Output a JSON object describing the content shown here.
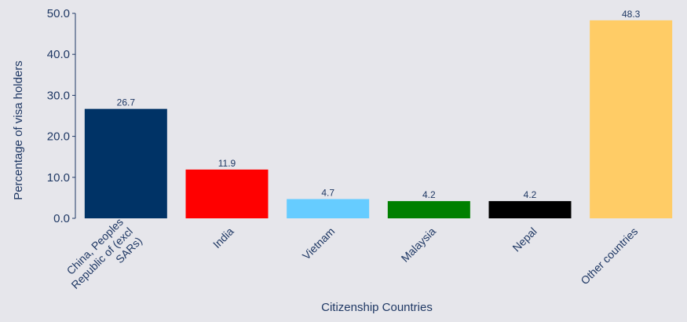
{
  "chart_data": {
    "type": "bar",
    "xlabel": "Citizenship Countries",
    "ylabel": "Percentage of visa holders",
    "ylim": [
      0,
      50
    ],
    "yticks": [
      "0.0",
      "10.0",
      "20.0",
      "30.0",
      "40.0",
      "50.0"
    ],
    "categories": [
      [
        "China, Peoples",
        "Republic of (excl",
        "SARs)"
      ],
      [
        "India"
      ],
      [
        "Vietnam"
      ],
      [
        "Malaysia"
      ],
      [
        "Nepal"
      ],
      [
        "Other countries"
      ]
    ],
    "values": [
      26.7,
      11.9,
      4.7,
      4.2,
      4.2,
      48.3
    ],
    "value_labels": [
      "26.7",
      "11.9",
      "4.7",
      "4.2",
      "4.2",
      "48.3"
    ],
    "colors": [
      "#003366",
      "#ff0000",
      "#66ccff",
      "#008000",
      "#000000",
      "#ffcc66"
    ],
    "grid": false
  }
}
